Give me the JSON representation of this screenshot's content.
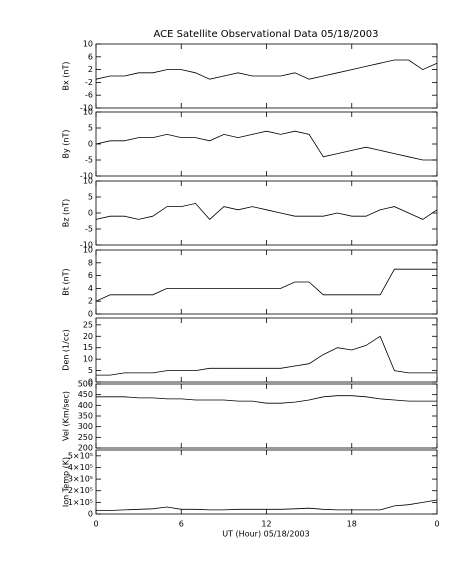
{
  "chart_data": [
    {
      "type": "line",
      "title": "ACE Satellite Observational Data   05/18/2003",
      "ylabel": "Bx (nT)",
      "color": "#000000",
      "x": [
        0,
        1,
        2,
        3,
        4,
        5,
        6,
        7,
        8,
        9,
        10,
        11,
        12,
        13,
        14,
        15,
        16,
        17,
        18,
        19,
        20,
        21,
        22,
        23,
        24
      ],
      "values": [
        -1,
        0,
        0,
        1,
        1,
        2,
        2,
        1,
        -1,
        0,
        1,
        0,
        0,
        0,
        1,
        -1,
        0,
        1,
        2,
        3,
        4,
        5,
        5,
        2,
        4
      ],
      "ylim": [
        -10,
        10
      ],
      "yticks": [
        -10,
        -6,
        -2,
        2,
        6,
        10
      ]
    },
    {
      "type": "line",
      "ylabel": "By (nT)",
      "color": "#000000",
      "x": [
        0,
        1,
        2,
        3,
        4,
        5,
        6,
        7,
        8,
        9,
        10,
        11,
        12,
        13,
        14,
        15,
        16,
        17,
        18,
        19,
        20,
        21,
        22,
        23,
        24
      ],
      "values": [
        0,
        1,
        1,
        2,
        2,
        3,
        2,
        2,
        1,
        3,
        2,
        3,
        4,
        3,
        4,
        3,
        -4,
        -3,
        -2,
        -1,
        -2,
        -3,
        -4,
        -5,
        -5
      ],
      "ylim": [
        -10,
        10
      ],
      "yticks": [
        -10,
        -5,
        0,
        5,
        10
      ]
    },
    {
      "type": "line",
      "ylabel": "Bz (nT)",
      "color": "#000000",
      "x": [
        0,
        1,
        2,
        3,
        4,
        5,
        6,
        7,
        8,
        9,
        10,
        11,
        12,
        13,
        14,
        15,
        16,
        17,
        18,
        19,
        20,
        21,
        22,
        23,
        24
      ],
      "values": [
        -2,
        -1,
        -1,
        -2,
        -1,
        2,
        2,
        3,
        -2,
        2,
        1,
        2,
        1,
        0,
        -1,
        -1,
        -1,
        0,
        -1,
        -1,
        1,
        2,
        0,
        -2,
        1
      ],
      "ylim": [
        -10,
        10
      ],
      "yticks": [
        -10,
        -5,
        0,
        5,
        10
      ]
    },
    {
      "type": "line",
      "ylabel": "Bt (nT)",
      "color": "#000000",
      "x": [
        0,
        1,
        2,
        3,
        4,
        5,
        6,
        7,
        8,
        9,
        10,
        11,
        12,
        13,
        14,
        15,
        16,
        17,
        18,
        19,
        20,
        21,
        22,
        23,
        24
      ],
      "values": [
        2,
        3,
        3,
        3,
        3,
        4,
        4,
        4,
        4,
        4,
        4,
        4,
        4,
        4,
        5,
        5,
        3,
        3,
        3,
        3,
        3,
        7,
        7,
        7,
        7
      ],
      "ylim": [
        0,
        10
      ],
      "yticks": [
        0,
        2,
        4,
        6,
        8,
        10
      ]
    },
    {
      "type": "line",
      "ylabel": "Den (1/cc)",
      "color": "#000000",
      "x": [
        0,
        1,
        2,
        3,
        4,
        5,
        6,
        7,
        8,
        9,
        10,
        11,
        12,
        13,
        14,
        15,
        16,
        17,
        18,
        19,
        20,
        21,
        22,
        23,
        24
      ],
      "values": [
        3,
        3,
        4,
        4,
        4,
        5,
        5,
        5,
        6,
        6,
        6,
        6,
        6,
        6,
        7,
        8,
        12,
        15,
        14,
        16,
        20,
        5,
        4,
        4,
        4
      ],
      "ylim": [
        0,
        28
      ],
      "yticks": [
        0,
        5,
        10,
        15,
        20,
        25
      ]
    },
    {
      "type": "line",
      "ylabel": "Vel (Km/sec)",
      "color": "#000000",
      "x": [
        0,
        1,
        2,
        3,
        4,
        5,
        6,
        7,
        8,
        9,
        10,
        11,
        12,
        13,
        14,
        15,
        16,
        17,
        18,
        19,
        20,
        21,
        22,
        23,
        24
      ],
      "values": [
        440,
        440,
        440,
        435,
        435,
        430,
        430,
        425,
        425,
        425,
        420,
        420,
        410,
        410,
        415,
        425,
        440,
        445,
        445,
        440,
        430,
        425,
        420,
        420,
        420
      ],
      "ylim": [
        200,
        500
      ],
      "yticks": [
        200,
        250,
        300,
        350,
        400,
        450,
        500
      ]
    },
    {
      "type": "line",
      "ylabel": "Ion Temp (K)",
      "xlabel": "UT (Hour)   05/18/2003",
      "color": "#000000",
      "x": [
        0,
        1,
        2,
        3,
        4,
        5,
        6,
        7,
        8,
        9,
        10,
        11,
        12,
        13,
        14,
        15,
        16,
        17,
        18,
        19,
        20,
        21,
        22,
        23,
        24
      ],
      "values": [
        30000,
        30000,
        35000,
        40000,
        45000,
        60000,
        40000,
        40000,
        35000,
        35000,
        40000,
        40000,
        40000,
        40000,
        45000,
        50000,
        40000,
        35000,
        35000,
        35000,
        35000,
        70000,
        80000,
        100000,
        120000
      ],
      "ylim": [
        0,
        550000
      ],
      "yticks": [
        0,
        {
          "value": 100000,
          "label": "1×10⁵"
        },
        {
          "value": 200000,
          "label": "2×10⁵"
        },
        {
          "value": 300000,
          "label": "3×10⁵"
        },
        {
          "value": 400000,
          "label": "4×10⁵"
        },
        {
          "value": 500000,
          "label": "5×10⁵"
        }
      ],
      "xlim": [
        0,
        24
      ],
      "xticks": [
        0,
        6,
        12,
        18,
        {
          "value": 24,
          "label": "0"
        }
      ]
    }
  ]
}
